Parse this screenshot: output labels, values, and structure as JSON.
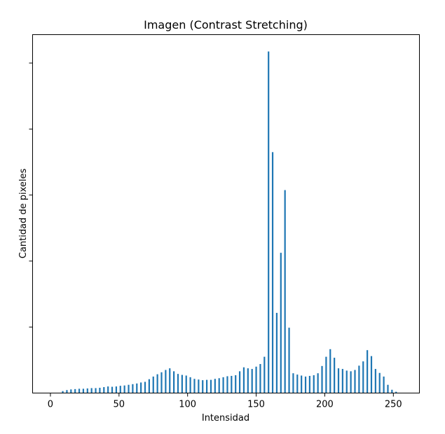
{
  "chart_data": {
    "type": "bar",
    "title": "Imagen (Contrast Stretching)",
    "xlabel": "Intensidad",
    "ylabel": "Cantidad de pixeles",
    "xlim": [
      -13,
      269
    ],
    "ylim": [
      0,
      1.086
    ],
    "x_ticks": [
      0,
      50,
      100,
      150,
      200,
      250
    ],
    "y_ticks": [
      0.2,
      0.4,
      0.6,
      0.8,
      1.0
    ],
    "y_tick_labels_visible": false,
    "grid": false,
    "bar_color": "#1f77b4",
    "x": [
      9,
      12,
      15,
      18,
      21,
      24,
      27,
      30,
      33,
      36,
      39,
      42,
      45,
      48,
      51,
      54,
      57,
      60,
      63,
      66,
      69,
      72,
      75,
      78,
      81,
      84,
      87,
      90,
      93,
      96,
      99,
      102,
      105,
      108,
      111,
      114,
      117,
      120,
      123,
      126,
      129,
      132,
      135,
      138,
      141,
      144,
      147,
      150,
      153,
      156,
      159,
      162,
      165,
      168,
      171,
      174,
      177,
      180,
      183,
      186,
      189,
      192,
      195,
      198,
      201,
      204,
      207,
      210,
      213,
      216,
      219,
      222,
      225,
      228,
      231,
      234,
      237,
      240,
      243,
      246,
      249,
      252,
      255
    ],
    "values": [
      0.006,
      0.009,
      0.011,
      0.012,
      0.013,
      0.013,
      0.014,
      0.015,
      0.015,
      0.016,
      0.018,
      0.02,
      0.019,
      0.02,
      0.022,
      0.023,
      0.025,
      0.027,
      0.029,
      0.032,
      0.034,
      0.042,
      0.05,
      0.057,
      0.063,
      0.07,
      0.075,
      0.066,
      0.058,
      0.055,
      0.053,
      0.048,
      0.043,
      0.041,
      0.039,
      0.04,
      0.04,
      0.043,
      0.045,
      0.048,
      0.051,
      0.052,
      0.054,
      0.066,
      0.078,
      0.075,
      0.073,
      0.08,
      0.088,
      0.11,
      1.035,
      0.73,
      0.243,
      0.425,
      0.615,
      0.198,
      0.06,
      0.056,
      0.053,
      0.05,
      0.052,
      0.054,
      0.06,
      0.082,
      0.11,
      0.133,
      0.107,
      0.075,
      0.073,
      0.068,
      0.066,
      0.07,
      0.083,
      0.096,
      0.13,
      0.112,
      0.073,
      0.061,
      0.05,
      0.025,
      0.01,
      0.004,
      0.0
    ]
  }
}
